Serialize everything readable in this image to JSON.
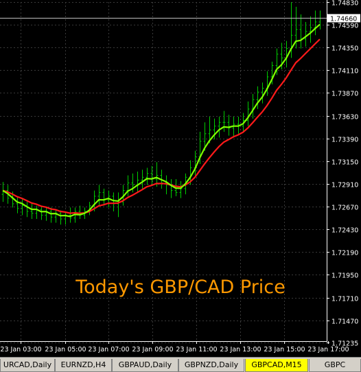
{
  "chart_data": {
    "type": "candlestick",
    "symbol": "GBPCAD",
    "timeframe": "M15",
    "ylim": [
      1.7125,
      1.7483
    ],
    "current_price": 1.7466,
    "current_price_label": "1.74660",
    "y_ticks": [
      "1.74830",
      "1.74590",
      "1.74350",
      "1.74110",
      "1.73870",
      "1.73630",
      "1.73390",
      "1.73150",
      "1.72910",
      "1.72670",
      "1.72430",
      "1.72190",
      "1.71950",
      "1.71710",
      "1.71470",
      "1.71235"
    ],
    "x_ticks": [
      "23 Jan 03:00",
      "23 Jan 05:00",
      "23 Jan 07:00",
      "23 Jan 09:00",
      "23 Jan 11:00",
      "23 Jan 13:00",
      "23 Jan 15:00",
      "23 Jan 17:00"
    ],
    "bars": [
      [
        1.728,
        1.7293,
        1.7272,
        1.7284
      ],
      [
        1.7284,
        1.729,
        1.727,
        1.7276
      ],
      [
        1.7276,
        1.7283,
        1.7266,
        1.727
      ],
      [
        1.727,
        1.7278,
        1.726,
        1.7265
      ],
      [
        1.7265,
        1.7275,
        1.7258,
        1.7268
      ],
      [
        1.7268,
        1.7272,
        1.7256,
        1.7262
      ],
      [
        1.7262,
        1.727,
        1.7254,
        1.726
      ],
      [
        1.726,
        1.7268,
        1.7254,
        1.7264
      ],
      [
        1.7264,
        1.7268,
        1.7253,
        1.7258
      ],
      [
        1.7258,
        1.7266,
        1.7252,
        1.7262
      ],
      [
        1.7262,
        1.7266,
        1.725,
        1.7256
      ],
      [
        1.7256,
        1.7264,
        1.725,
        1.726
      ],
      [
        1.726,
        1.7263,
        1.7248,
        1.7254
      ],
      [
        1.7254,
        1.7262,
        1.7248,
        1.7258
      ],
      [
        1.7258,
        1.7266,
        1.725,
        1.7255
      ],
      [
        1.7255,
        1.7266,
        1.725,
        1.7262
      ],
      [
        1.7262,
        1.7268,
        1.7254,
        1.7258
      ],
      [
        1.7258,
        1.7266,
        1.7254,
        1.7262
      ],
      [
        1.7262,
        1.7272,
        1.7258,
        1.7268
      ],
      [
        1.7268,
        1.7284,
        1.7262,
        1.7278
      ],
      [
        1.7278,
        1.729,
        1.7268,
        1.7282
      ],
      [
        1.7282,
        1.7286,
        1.7268,
        1.7274
      ],
      [
        1.7274,
        1.7284,
        1.7266,
        1.7278
      ],
      [
        1.7278,
        1.7282,
        1.7262,
        1.727
      ],
      [
        1.727,
        1.7282,
        1.7256,
        1.7272
      ],
      [
        1.7272,
        1.729,
        1.7268,
        1.7284
      ],
      [
        1.7284,
        1.73,
        1.7278,
        1.7292
      ],
      [
        1.7292,
        1.7302,
        1.7282,
        1.729
      ],
      [
        1.729,
        1.7304,
        1.7282,
        1.7295
      ],
      [
        1.7295,
        1.7306,
        1.7286,
        1.7298
      ],
      [
        1.7298,
        1.7308,
        1.729,
        1.7302
      ],
      [
        1.7302,
        1.731,
        1.729,
        1.7296
      ],
      [
        1.7296,
        1.7314,
        1.7288,
        1.73
      ],
      [
        1.73,
        1.7306,
        1.7286,
        1.7292
      ],
      [
        1.7292,
        1.73,
        1.728,
        1.729
      ],
      [
        1.729,
        1.7296,
        1.7276,
        1.7284
      ],
      [
        1.7284,
        1.7296,
        1.7278,
        1.7282
      ],
      [
        1.7282,
        1.7294,
        1.7276,
        1.7286
      ],
      [
        1.7286,
        1.7302,
        1.728,
        1.7298
      ],
      [
        1.7298,
        1.7316,
        1.729,
        1.7308
      ],
      [
        1.7308,
        1.7326,
        1.73,
        1.732
      ],
      [
        1.732,
        1.7346,
        1.7312,
        1.7336
      ],
      [
        1.7336,
        1.7356,
        1.7326,
        1.7344
      ],
      [
        1.7344,
        1.7362,
        1.7334,
        1.7348
      ],
      [
        1.7348,
        1.736,
        1.7338,
        1.7352
      ],
      [
        1.7352,
        1.7362,
        1.734,
        1.7356
      ],
      [
        1.7356,
        1.7368,
        1.7346,
        1.7356
      ],
      [
        1.7356,
        1.7364,
        1.7342,
        1.735
      ],
      [
        1.735,
        1.7362,
        1.734,
        1.7354
      ],
      [
        1.7354,
        1.7362,
        1.7344,
        1.7352
      ],
      [
        1.7352,
        1.7366,
        1.7346,
        1.7358
      ],
      [
        1.7358,
        1.7378,
        1.7352,
        1.737
      ],
      [
        1.737,
        1.7386,
        1.736,
        1.738
      ],
      [
        1.738,
        1.7394,
        1.737,
        1.7388
      ],
      [
        1.7388,
        1.7398,
        1.7376,
        1.7392
      ],
      [
        1.7392,
        1.741,
        1.7384,
        1.7404
      ],
      [
        1.7404,
        1.742,
        1.7396,
        1.7416
      ],
      [
        1.7416,
        1.7434,
        1.7406,
        1.7428
      ],
      [
        1.7428,
        1.744,
        1.7412,
        1.7424
      ],
      [
        1.7424,
        1.7442,
        1.7414,
        1.7434
      ],
      [
        1.7434,
        1.7483,
        1.7424,
        1.7448
      ],
      [
        1.7448,
        1.7478,
        1.7434,
        1.7454
      ],
      [
        1.7454,
        1.747,
        1.7434,
        1.7444
      ],
      [
        1.7444,
        1.7462,
        1.7436,
        1.7452
      ],
      [
        1.7452,
        1.7468,
        1.744,
        1.7456
      ],
      [
        1.7456,
        1.7474,
        1.7448,
        1.7462
      ],
      [
        1.7462,
        1.7474,
        1.7454,
        1.7466
      ]
    ],
    "series": [
      {
        "color": "#80ff00"
      },
      {
        "color": "#ff1a1a"
      }
    ]
  },
  "watermark": {
    "text": "Today's GBP/CAD Price",
    "color": "#ff9900"
  },
  "tabs": [
    {
      "label": "URCAD,Daily",
      "active": false
    },
    {
      "label": "EURNZD,H4",
      "active": false
    },
    {
      "label": "GBPAUD,Daily",
      "active": false
    },
    {
      "label": "GBPNZD,Daily",
      "active": false
    },
    {
      "label": "GBPCAD,M15",
      "active": true
    },
    {
      "label": "GBPC",
      "active": false
    }
  ],
  "colors": {
    "background": "#000000",
    "grid": "#3a3a3a",
    "axis_text": "#ffffff",
    "bars": "#00cc00",
    "price_label_bg": "#ffffff",
    "price_label_text": "#000000",
    "active_tab": "#ffff00"
  }
}
